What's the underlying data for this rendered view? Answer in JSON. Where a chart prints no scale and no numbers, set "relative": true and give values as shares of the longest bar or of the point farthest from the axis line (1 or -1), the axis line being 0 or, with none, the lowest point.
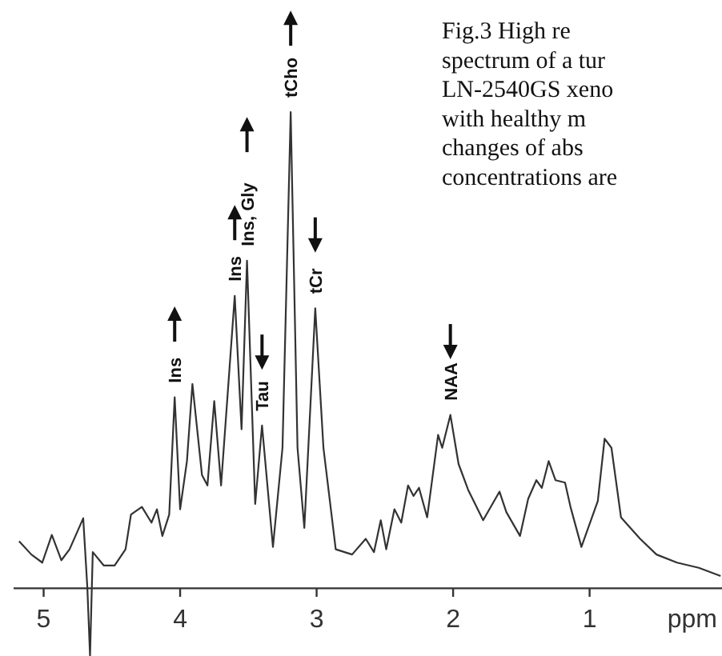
{
  "chart_data": {
    "type": "line",
    "relative": true,
    "xlabel": "ppm",
    "xlim": [
      5.22,
      0.03
    ],
    "xticks": [
      5,
      4,
      3,
      2,
      1
    ],
    "grid": false,
    "line_style": "solid",
    "x": [
      5.18,
      5.09,
      5.01,
      4.94,
      4.87,
      4.81,
      4.71,
      4.68,
      4.66,
      4.64,
      4.56,
      4.48,
      4.4,
      4.36,
      4.28,
      4.21,
      4.17,
      4.13,
      4.08,
      4.04,
      4.0,
      3.95,
      3.91,
      3.84,
      3.8,
      3.75,
      3.7,
      3.6,
      3.55,
      3.51,
      3.45,
      3.4,
      3.32,
      3.25,
      3.19,
      3.14,
      3.09,
      3.01,
      2.95,
      2.86,
      2.74,
      2.64,
      2.58,
      2.53,
      2.49,
      2.43,
      2.38,
      2.33,
      2.29,
      2.25,
      2.19,
      2.11,
      2.08,
      2.02,
      1.96,
      1.89,
      1.78,
      1.66,
      1.61,
      1.51,
      1.45,
      1.39,
      1.35,
      1.3,
      1.25,
      1.18,
      1.14,
      1.06,
      0.94,
      0.89,
      0.84,
      0.77,
      0.63,
      0.51,
      0.36,
      0.2,
      0.04
    ],
    "series": [
      {
        "color": "#333333",
        "values": [
          0.099,
          0.071,
          0.054,
          0.112,
          0.059,
          0.082,
          0.147,
          0.003,
          -0.142,
          0.076,
          0.048,
          0.048,
          0.082,
          0.155,
          0.171,
          0.138,
          0.166,
          0.11,
          0.155,
          0.401,
          0.166,
          0.267,
          0.429,
          0.238,
          0.216,
          0.393,
          0.216,
          0.614,
          0.334,
          0.688,
          0.177,
          0.342,
          0.087,
          0.295,
          1.0,
          0.295,
          0.127,
          0.588,
          0.295,
          0.082,
          0.071,
          0.104,
          0.076,
          0.143,
          0.082,
          0.166,
          0.138,
          0.216,
          0.194,
          0.211,
          0.149,
          0.322,
          0.295,
          0.364,
          0.261,
          0.207,
          0.143,
          0.203,
          0.16,
          0.11,
          0.188,
          0.227,
          0.211,
          0.267,
          0.227,
          0.222,
          0.171,
          0.087,
          0.183,
          0.314,
          0.295,
          0.149,
          0.104,
          0.071,
          0.054,
          0.043,
          0.026
        ]
      }
    ],
    "annotations": [
      {
        "text": "Ins",
        "x": 4.04,
        "y": 0.401
      },
      {
        "text": "Ins",
        "x": 3.6,
        "y": 0.614
      },
      {
        "text": "Ins, Gly",
        "x": 3.51,
        "y": 0.688
      },
      {
        "text": "Tau",
        "x": 3.4,
        "y": 0.342
      },
      {
        "text": "tCho",
        "x": 3.19,
        "y": 1.0
      },
      {
        "text": "tCr",
        "x": 3.01,
        "y": 0.588
      },
      {
        "text": "NAA",
        "x": 2.02,
        "y": 0.364
      },
      "Fig.3  High  re\nspectrum of a tur\nLN-2540GS xeno\nwith healthy m\nchanges of abs\nconcentrations are"
    ]
  }
}
